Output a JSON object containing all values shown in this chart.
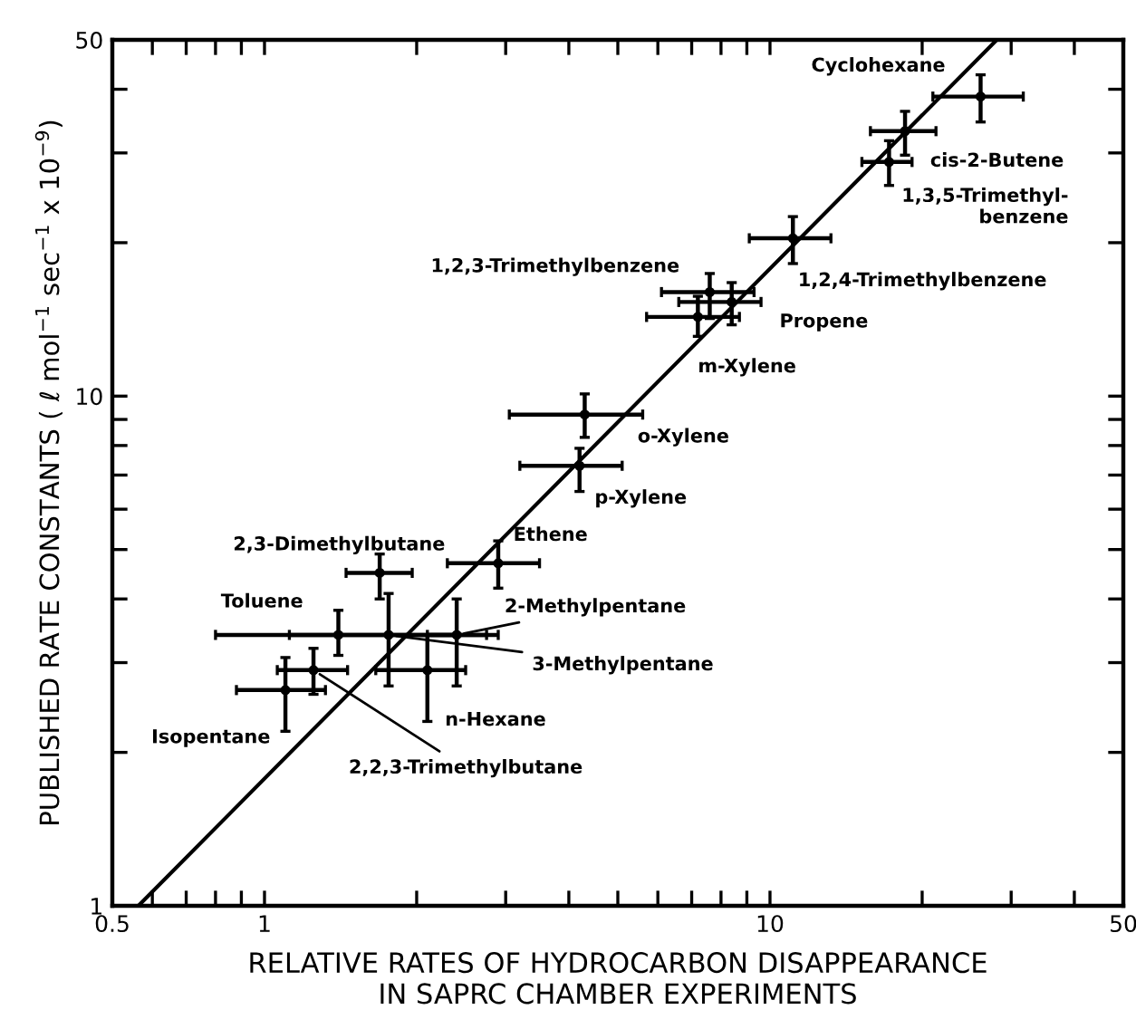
{
  "chart_data": {
    "type": "scatter",
    "xlabel": "RELATIVE RATES OF HYDROCARBON DISAPPEARANCE\nIN SAPRC CHAMBER EXPERIMENTS",
    "ylabel": "PUBLISHED RATE CONSTANTS ( ℓ mol$^{−1}$ sec$^{−1}$ x 10$^{−9}$)",
    "log": "xy",
    "marker": "circle",
    "grid": false,
    "xlim": [
      0.5,
      50
    ],
    "ylim": [
      1,
      50
    ],
    "xticks": [
      0.5,
      {
        "value": 0.6,
        "label": null
      },
      {
        "value": 0.7,
        "label": null
      },
      {
        "value": 0.8,
        "label": null
      },
      {
        "value": 0.9,
        "label": null
      },
      1,
      {
        "value": 2,
        "label": null
      },
      {
        "value": 3,
        "label": null
      },
      {
        "value": 4,
        "label": null
      },
      {
        "value": 5,
        "label": null
      },
      {
        "value": 6,
        "label": null
      },
      {
        "value": 7,
        "label": null
      },
      {
        "value": 8,
        "label": null
      },
      {
        "value": 9,
        "label": null
      },
      10,
      {
        "value": 20,
        "label": null
      },
      {
        "value": 30,
        "label": null
      },
      {
        "value": 40,
        "label": null
      },
      50
    ],
    "yticks": [
      1,
      {
        "value": 2,
        "label": null
      },
      {
        "value": 3,
        "label": null
      },
      {
        "value": 4,
        "label": null
      },
      {
        "value": 5,
        "label": null
      },
      {
        "value": 6,
        "label": null
      },
      {
        "value": 7,
        "label": null
      },
      {
        "value": 8,
        "label": null
      },
      {
        "value": 9,
        "label": null
      },
      10,
      {
        "value": 20,
        "label": null
      },
      {
        "value": 30,
        "label": null
      },
      {
        "value": 40,
        "label": null
      },
      50
    ],
    "series": [
      {
        "name": "Cyclohexane",
        "color": "#000000",
        "x": [
          26.1
        ],
        "values": [
          38.7
        ],
        "xerrors": [
          [
            21,
            31.7
          ]
        ],
        "errors": [
          [
            34.5,
            42.7
          ]
        ]
      },
      {
        "name": "cis-2-Butene",
        "color": "#000000",
        "x": [
          18.5
        ],
        "values": [
          33.1
        ],
        "xerrors": [
          [
            15.8,
            21.3
          ]
        ],
        "errors": [
          [
            29.7,
            36.2
          ]
        ]
      },
      {
        "name": "1,3,5-Trimethyl-\nbenzene",
        "color": "#000000",
        "x": [
          17.2
        ],
        "values": [
          28.8
        ],
        "xerrors": [
          [
            15.2,
            19.1
          ]
        ],
        "errors": [
          [
            25.9,
            31.7
          ]
        ]
      },
      {
        "name": "1,2,4-Trimethylbenzene",
        "color": "#000000",
        "x": [
          11.1
        ],
        "values": [
          20.4
        ],
        "xerrors": [
          [
            9.1,
            13.2
          ]
        ],
        "errors": [
          [
            18.2,
            22.5
          ]
        ]
      },
      {
        "name": "1,2,3-Trimethylbenzene",
        "color": "#000000",
        "x": [
          7.6
        ],
        "values": [
          16
        ],
        "xerrors": [
          [
            6.1,
            9.3
          ]
        ],
        "errors": [
          [
            14.2,
            17.4
          ]
        ]
      },
      {
        "name": "Propene",
        "color": "#000000",
        "x": [
          8.4
        ],
        "values": [
          15.3
        ],
        "xerrors": [
          [
            6.6,
            9.6
          ]
        ],
        "errors": [
          [
            13.8,
            16.7
          ]
        ]
      },
      {
        "name": "m-Xylene",
        "color": "#000000",
        "x": [
          7.2
        ],
        "values": [
          14.3
        ],
        "xerrors": [
          [
            5.7,
            8.7
          ]
        ],
        "errors": [
          [
            13.1,
            15.7
          ]
        ]
      },
      {
        "name": "o-Xylene",
        "color": "#000000",
        "x": [
          4.3
        ],
        "values": [
          9.2
        ],
        "xerrors": [
          [
            3.05,
            5.6
          ]
        ],
        "errors": [
          [
            8.3,
            10.1
          ]
        ]
      },
      {
        "name": "p-Xylene",
        "color": "#000000",
        "x": [
          4.2
        ],
        "values": [
          7.3
        ],
        "xerrors": [
          [
            3.2,
            5.1
          ]
        ],
        "errors": [
          [
            6.5,
            7.9
          ]
        ]
      },
      {
        "name": "2,3-Dimethylbutane",
        "color": "#000000",
        "x": [
          1.69
        ],
        "values": [
          4.5
        ],
        "xerrors": [
          [
            1.45,
            1.96
          ]
        ],
        "errors": [
          [
            4.0,
            4.9
          ]
        ]
      },
      {
        "name": "Ethene",
        "color": "#000000",
        "x": [
          2.9
        ],
        "values": [
          4.7
        ],
        "xerrors": [
          [
            2.3,
            3.5
          ]
        ],
        "errors": [
          [
            4.2,
            5.2
          ]
        ]
      },
      {
        "name": "Toluene",
        "color": "#000000",
        "x": [
          1.4
        ],
        "values": [
          3.4
        ],
        "xerrors": [
          [
            0.8,
            2.4
          ]
        ],
        "errors": [
          [
            3.1,
            3.8
          ]
        ]
      },
      {
        "name": "2-Methylpentane",
        "color": "#000000",
        "x": [
          2.4
        ],
        "values": [
          3.4
        ],
        "xerrors": [
          [
            2.1,
            2.75
          ]
        ],
        "errors": [
          [
            2.7,
            4.0
          ]
        ]
      },
      {
        "name": "3-Methylpentane",
        "color": "#000000",
        "x": [
          1.76
        ],
        "values": [
          3.4
        ],
        "xerrors": [
          [
            1.12,
            2.9
          ]
        ],
        "errors": [
          [
            2.7,
            4.1
          ]
        ]
      },
      {
        "name": "n-Hexane",
        "color": "#000000",
        "x": [
          2.1
        ],
        "values": [
          2.9
        ],
        "xerrors": [
          [
            1.66,
            2.5
          ]
        ],
        "errors": [
          [
            2.3,
            3.4
          ]
        ]
      },
      {
        "name": "Isopentane",
        "color": "#000000",
        "x": [
          1.1
        ],
        "values": [
          2.65
        ],
        "xerrors": [
          [
            0.88,
            1.32
          ]
        ],
        "errors": [
          [
            2.2,
            3.07
          ]
        ]
      },
      {
        "name": "2,2,3-Trimethylbutane",
        "color": "#000000",
        "x": [
          1.25
        ],
        "values": [
          2.9
        ],
        "xerrors": [
          [
            1.06,
            1.46
          ]
        ],
        "errors": [
          [
            2.6,
            3.2
          ]
        ]
      },
      {
        "type": "line",
        "marker": "none",
        "color": "#000000",
        "x": [
          0.563,
          28.1
        ],
        "values": [
          1,
          50
        ]
      }
    ]
  }
}
